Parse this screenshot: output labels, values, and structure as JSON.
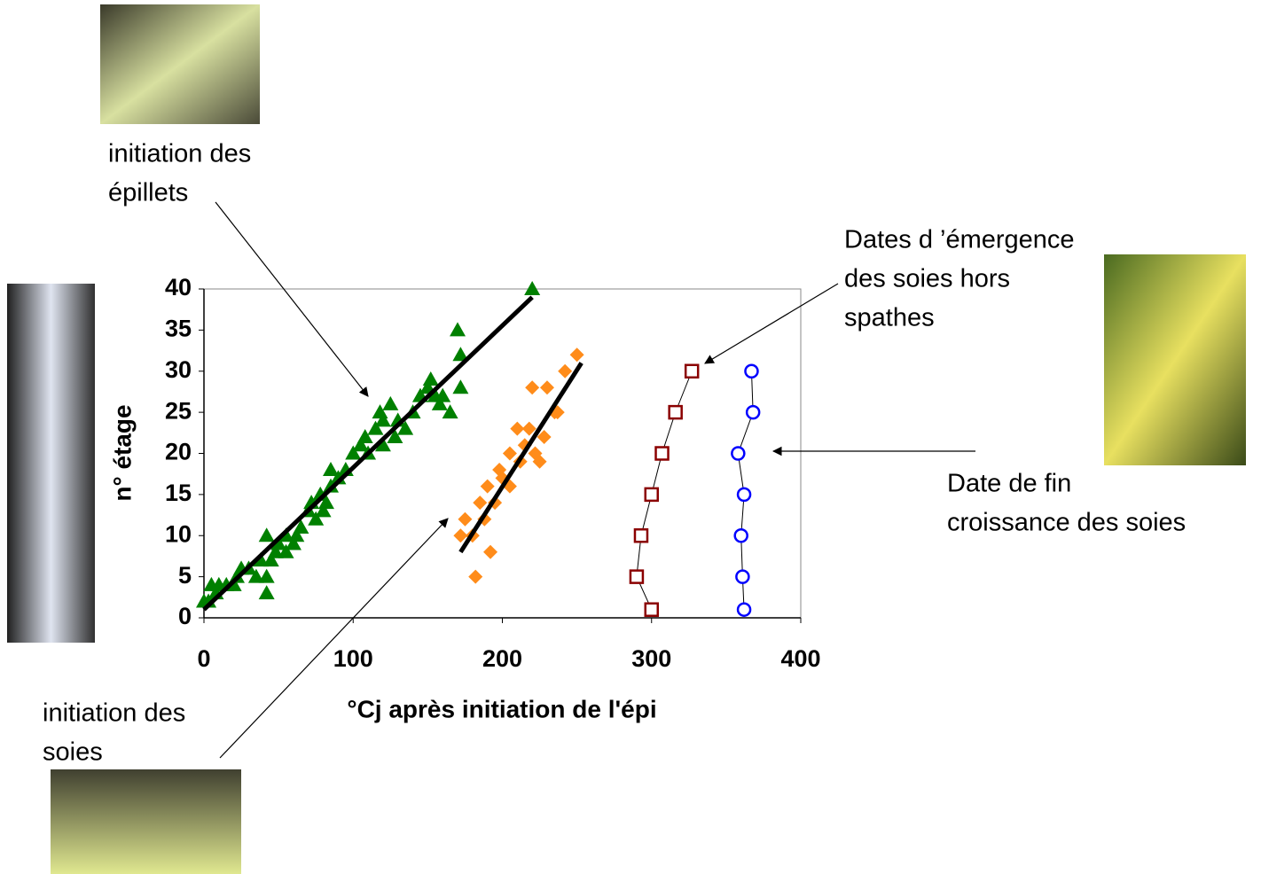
{
  "chart_data": {
    "type": "scatter",
    "xlabel": "°Cj après initiation de l'épi",
    "ylabel": "n° étage",
    "xlim": [
      0,
      400
    ],
    "ylim": [
      0,
      40
    ],
    "xticks": [
      0,
      100,
      200,
      300,
      400
    ],
    "yticks": [
      0,
      5,
      10,
      15,
      20,
      25,
      30,
      35,
      40
    ],
    "series": [
      {
        "marker": "triangle",
        "color": "#008000",
        "line": false,
        "x": [
          0,
          3,
          5,
          8,
          10,
          15,
          20,
          22,
          25,
          30,
          35,
          38,
          42,
          42,
          42,
          45,
          48,
          50,
          55,
          55,
          60,
          62,
          65,
          70,
          72,
          75,
          78,
          80,
          82,
          85,
          85,
          90,
          95,
          100,
          105,
          108,
          110,
          115,
          118,
          120,
          120,
          125,
          128,
          130,
          135,
          140,
          145,
          150,
          152,
          155,
          158,
          160,
          165,
          170,
          172,
          172,
          220
        ],
        "values": [
          2,
          2,
          4,
          3,
          4,
          4,
          4,
          5,
          6,
          6,
          5,
          7,
          10,
          3,
          5,
          7,
          8,
          9,
          10,
          8,
          9,
          10,
          11,
          13,
          14,
          12,
          15,
          13,
          14,
          16,
          18,
          17,
          18,
          20,
          21,
          22,
          20,
          23,
          25,
          24,
          21,
          26,
          22,
          24,
          23,
          25,
          27,
          28,
          29,
          27,
          26,
          27,
          25,
          35,
          32,
          28,
          40
        ]
      },
      {
        "marker": "diamond",
        "color": "#ff8c1a",
        "line": false,
        "x": [
          172,
          175,
          180,
          182,
          185,
          188,
          190,
          192,
          195,
          198,
          200,
          205,
          205,
          210,
          212,
          215,
          218,
          220,
          222,
          225,
          228,
          230,
          235,
          237,
          242,
          250
        ],
        "values": [
          10,
          12,
          10,
          5,
          14,
          12,
          16,
          8,
          14,
          18,
          17,
          16,
          20,
          23,
          19,
          21,
          23,
          28,
          20,
          19,
          22,
          28,
          25,
          25,
          30,
          32
        ]
      },
      {
        "marker": "square",
        "color": "#8b0000",
        "line": true,
        "x": [
          300,
          290,
          293,
          300,
          307,
          316,
          327
        ],
        "values": [
          1,
          5,
          10,
          15,
          20,
          25,
          30
        ]
      },
      {
        "marker": "circle",
        "color": "#0000ff",
        "line": true,
        "x": [
          362,
          361,
          360,
          362,
          358,
          368,
          367
        ],
        "values": [
          1,
          5,
          10,
          15,
          20,
          25,
          30
        ]
      }
    ],
    "trendlines": [
      {
        "color": "#000000",
        "x": [
          0,
          220
        ],
        "values": [
          1,
          39
        ]
      },
      {
        "color": "#000000",
        "x": [
          172,
          253
        ],
        "values": [
          8,
          31
        ]
      }
    ],
    "annotations": [
      {
        "lines": [
          "initiation des",
          "épillets"
        ]
      },
      {
        "lines": [
          "initiation des",
          "soies"
        ]
      },
      {
        "lines": [
          "Dates d ’émergence",
          "des soies hors",
          "spathes"
        ]
      },
      {
        "lines": [
          "Date de fin",
          "croissance des soies"
        ]
      }
    ]
  }
}
